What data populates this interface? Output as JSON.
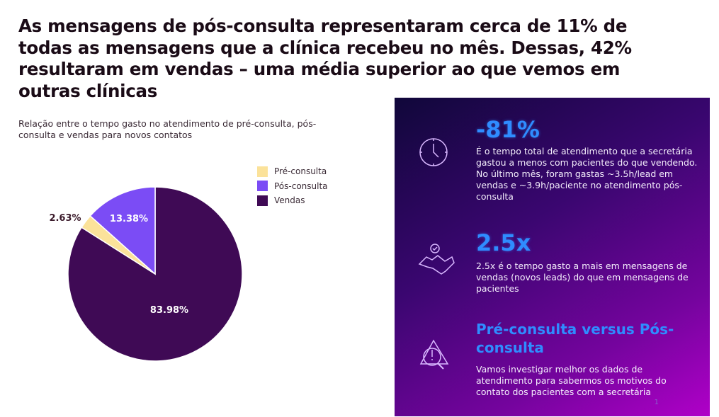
{
  "headline": "As mensagens de pós-consulta representaram cerca de 11% de todas as mensagens que a clínica recebeu no mês. Dessas, 42% resultaram em vendas – uma média superior ao que vemos em outras clínicas",
  "chart_data": {
    "type": "pie",
    "title": "Relação entre o tempo gasto no atendimento de pré-consulta, pós-consulta e vendas para novos contatos",
    "categories": [
      "Vendas",
      "Pré-consulta",
      "Pós-consulta"
    ],
    "values": [
      83.98,
      2.63,
      13.38
    ],
    "labels": [
      "83.98%",
      "2.63%",
      "13.38%"
    ],
    "colors": [
      "#3f0a55",
      "#fbe29a",
      "#7b4cf5"
    ],
    "legend": {
      "placement": "top-right",
      "entries": [
        "Pré-consulta",
        "Pós-consulta",
        "Vendas"
      ],
      "colors": [
        "#fbe29a",
        "#7b4cf5",
        "#3f0a55"
      ]
    }
  },
  "panel": {
    "items": [
      {
        "icon": "clock-icon",
        "title": "-81%",
        "text": "É o tempo total de atendimento que a secretária gastou a menos com pacientes do que vendendo. No último mês, foram gastas ~3.5h/lead em vendas e ~3.9h/paciente no atendimento pós-consulta"
      },
      {
        "icon": "handshake-icon",
        "title": "2.5x",
        "text": "2.5x é o tempo gasto a mais em mensagens de vendas (novos leads) do que em mensagens de pacientes"
      },
      {
        "icon": "alert-search-icon",
        "title": "Pré-consulta versus Pós-consulta",
        "text": "Vamos investigar melhor os dados de atendimento para sabermos os motivos do contato dos pacientes com a secretária"
      }
    ],
    "page_number": "1"
  }
}
